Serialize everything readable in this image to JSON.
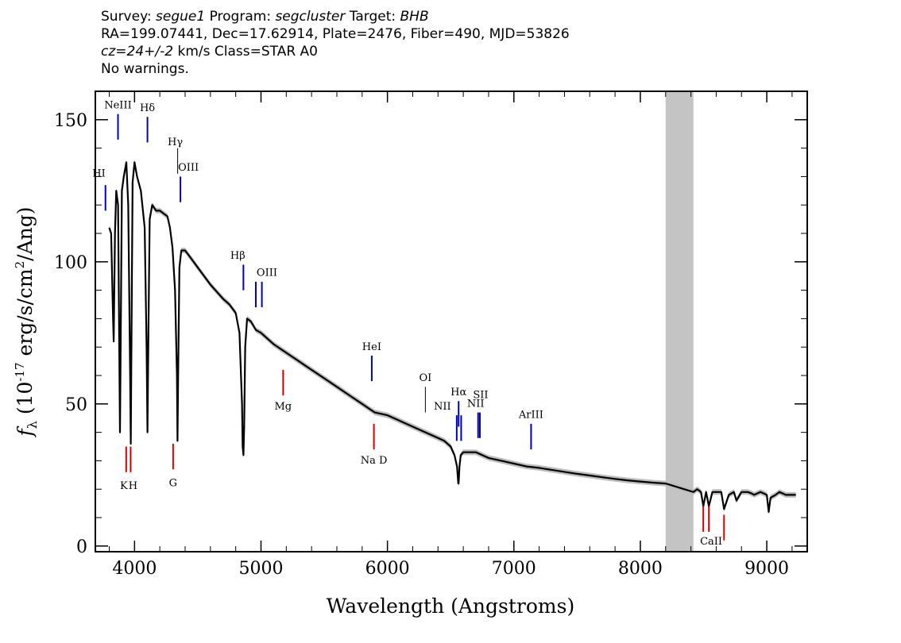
{
  "header": {
    "line1": {
      "survey_label": "Survey: ",
      "survey": "segue1",
      "program_label": " Program: ",
      "program": "segcluster",
      "target_label": " Target: ",
      "target": "BHB"
    },
    "line2": "RA=199.07441, Dec=17.62914, Plate=2476, Fiber=490, MJD=53826",
    "line3": {
      "cz": "cz=24+/-2",
      "rest": " km/s Class=STAR A0"
    },
    "line4": "No warnings."
  },
  "chart_data": {
    "type": "line",
    "xlabel": "Wavelength (Angstroms)",
    "ylabel_parts": {
      "f": "f",
      "sub": "λ",
      "pre": " (10",
      "exp1": "-17",
      "mid": " erg/s/cm",
      "exp2": "2",
      "post": "/Ang)"
    },
    "xlim": [
      3690,
      9320
    ],
    "ylim": [
      -2,
      160
    ],
    "x_ticks": [
      4000,
      5000,
      6000,
      7000,
      8000,
      9000
    ],
    "y_ticks": [
      0,
      50,
      100,
      150
    ],
    "masked_region": [
      8200,
      8420
    ],
    "spectrum": {
      "x": [
        3800,
        3815,
        3830,
        3835,
        3845,
        3855,
        3870,
        3885,
        3900,
        3915,
        3935,
        3950,
        3965,
        3970,
        3975,
        3985,
        4000,
        4020,
        4050,
        4080,
        4095,
        4102,
        4110,
        4120,
        4140,
        4170,
        4200,
        4230,
        4260,
        4280,
        4300,
        4320,
        4335,
        4340,
        4345,
        4355,
        4370,
        4400,
        4450,
        4500,
        4600,
        4700,
        4750,
        4800,
        4830,
        4850,
        4855,
        4861,
        4867,
        4875,
        4890,
        4920,
        4960,
        5000,
        5100,
        5200,
        5300,
        5400,
        5500,
        5600,
        5700,
        5800,
        5900,
        6000,
        6100,
        6200,
        6300,
        6400,
        6450,
        6500,
        6530,
        6550,
        6560,
        6563,
        6570,
        6580,
        6600,
        6650,
        6700,
        6800,
        6900,
        7000,
        7100,
        7200,
        7300,
        7400,
        7500,
        7600,
        7700,
        7800,
        7900,
        8000,
        8100,
        8200,
        8420,
        8450,
        8480,
        8498,
        8520,
        8542,
        8570,
        8600,
        8640,
        8662,
        8700,
        8740,
        8760,
        8800,
        8850,
        8880,
        8900,
        8950,
        9000,
        9015,
        9030,
        9070,
        9100,
        9150,
        9200,
        9230
      ],
      "y": [
        112,
        110,
        80,
        72,
        110,
        125,
        120,
        40,
        125,
        130,
        135,
        120,
        60,
        36,
        70,
        128,
        135,
        130,
        125,
        112,
        70,
        40,
        75,
        115,
        120,
        118,
        118,
        117,
        116,
        112,
        105,
        90,
        60,
        37,
        60,
        98,
        104,
        104,
        101,
        98,
        92,
        87,
        85,
        82,
        75,
        50,
        35,
        32,
        42,
        70,
        80,
        79,
        76,
        75,
        71,
        68,
        65,
        62,
        59,
        56,
        53,
        50,
        47,
        46,
        44,
        42,
        40,
        38,
        37,
        35,
        32,
        28,
        22,
        22,
        28,
        32,
        33,
        33,
        33,
        31,
        30,
        29,
        28,
        27.5,
        26.8,
        26.1,
        25.4,
        24.8,
        24.2,
        23.6,
        23.1,
        22.7,
        22.3,
        22,
        19,
        20,
        19,
        14,
        19,
        14,
        19,
        19,
        19,
        13,
        18,
        19,
        16,
        19,
        19,
        18.5,
        18,
        19,
        18,
        12,
        17,
        18,
        19,
        18,
        18,
        18
      ]
    },
    "lines": [
      {
        "label": "HI",
        "x": 3770,
        "y_bottom": 118,
        "y_top": 127,
        "color": "#0000bb",
        "label_y": 130,
        "anchor": "end",
        "dx": 0
      },
      {
        "label": "NeIII",
        "x": 3869,
        "y_bottom": 143,
        "y_top": 152,
        "color": "#0000bb",
        "label_y": 154,
        "anchor": "middle",
        "dx": 0
      },
      {
        "label": "Hδ",
        "x": 4102,
        "y_bottom": 142,
        "y_top": 151,
        "color": "#0000bb",
        "label_y": 153,
        "anchor": "middle",
        "dx": 0
      },
      {
        "label": "Hγ",
        "x": 4341,
        "y_bottom": 131,
        "y_top": 140,
        "color": "#000000",
        "label_y": 141,
        "anchor": "middle",
        "dx": -3
      },
      {
        "label": "OIII",
        "x": 4363,
        "y_bottom": 121,
        "y_top": 130,
        "color": "#0000bb",
        "label_y": 132,
        "anchor": "middle",
        "dx": 10
      },
      {
        "label": "Hβ",
        "x": 4861,
        "y_bottom": 90,
        "y_top": 99,
        "color": "#0000bb",
        "label_y": 101,
        "anchor": "middle",
        "dx": -7
      },
      {
        "label": "OIII",
        "x": 4959,
        "y_bottom": 84,
        "y_top": 93,
        "color": "#0000bb",
        "label_y": 95,
        "anchor": "middle",
        "dx": 14
      },
      {
        "label": "",
        "x": 5007,
        "y_bottom": 84,
        "y_top": 93,
        "color": "#0000bb",
        "label_y": 0,
        "anchor": "middle",
        "dx": 0
      },
      {
        "label": "Mg",
        "x": 5175,
        "y_bottom": 53,
        "y_top": 62,
        "color": "#dd0000",
        "label_y": 48,
        "anchor": "middle",
        "dx": 0
      },
      {
        "label": "HeI",
        "x": 5876,
        "y_bottom": 58,
        "y_top": 67,
        "color": "#0000bb",
        "label_y": 69,
        "anchor": "middle",
        "dx": 0
      },
      {
        "label": "Na D",
        "x": 5893,
        "y_bottom": 34,
        "y_top": 43,
        "color": "#dd0000",
        "label_y": 29,
        "anchor": "middle",
        "dx": 0
      },
      {
        "label": "OI",
        "x": 6300,
        "y_bottom": 47,
        "y_top": 56,
        "color": "#000000",
        "label_y": 58,
        "anchor": "middle",
        "dx": 0
      },
      {
        "label": "NII",
        "x": 6548,
        "y_bottom": 37,
        "y_top": 46,
        "color": "#0000bb",
        "label_y": 48,
        "anchor": "middle",
        "dx": -18
      },
      {
        "label": "Hα",
        "x": 6563,
        "y_bottom": 42,
        "y_top": 51,
        "color": "#0000bb",
        "label_y": 53,
        "anchor": "middle",
        "dx": 0
      },
      {
        "label": "",
        "x": 6583,
        "y_bottom": 37,
        "y_top": 46,
        "color": "#0000bb",
        "label_y": 0,
        "anchor": "middle",
        "dx": 0
      },
      {
        "label": "NII",
        "x": 6717,
        "y_bottom": 38,
        "y_top": 47,
        "color": "#0000bb",
        "label_y": 49,
        "anchor": "middle",
        "dx": -3
      },
      {
        "label": "SII",
        "x": 6731,
        "y_bottom": 38,
        "y_top": 47,
        "color": "#0000bb",
        "label_y": 52,
        "anchor": "middle",
        "dx": 1
      },
      {
        "label": "ArIII",
        "x": 7136,
        "y_bottom": 34,
        "y_top": 43,
        "color": "#0000bb",
        "label_y": 45,
        "anchor": "middle",
        "dx": 0
      },
      {
        "label": "K",
        "x": 3934,
        "y_bottom": 26,
        "y_top": 35,
        "color": "#dd0000",
        "label_y": 20,
        "anchor": "middle",
        "dx": -3
      },
      {
        "label": "H",
        "x": 3969,
        "y_bottom": 26,
        "y_top": 35,
        "color": "#dd0000",
        "label_y": 20,
        "anchor": "middle",
        "dx": 3
      },
      {
        "label": "G",
        "x": 4305,
        "y_bottom": 27,
        "y_top": 36,
        "color": "#dd0000",
        "label_y": 21,
        "anchor": "middle",
        "dx": 0
      },
      {
        "label": "",
        "x": 8498,
        "y_bottom": 5,
        "y_top": 14,
        "color": "#dd0000",
        "label_y": 0,
        "anchor": "middle",
        "dx": 0
      },
      {
        "label": "CaII",
        "x": 8542,
        "y_bottom": 5,
        "y_top": 14,
        "color": "#dd0000",
        "label_y": 0,
        "anchor": "middle",
        "dx": 0
      },
      {
        "label": "",
        "x": 8662,
        "y_bottom": 2,
        "y_top": 11,
        "color": "#dd0000",
        "label_y": 0,
        "anchor": "middle",
        "dx": 0
      }
    ],
    "caii_label": {
      "text": "CaII",
      "x": 8560,
      "y": 0.5
    }
  }
}
